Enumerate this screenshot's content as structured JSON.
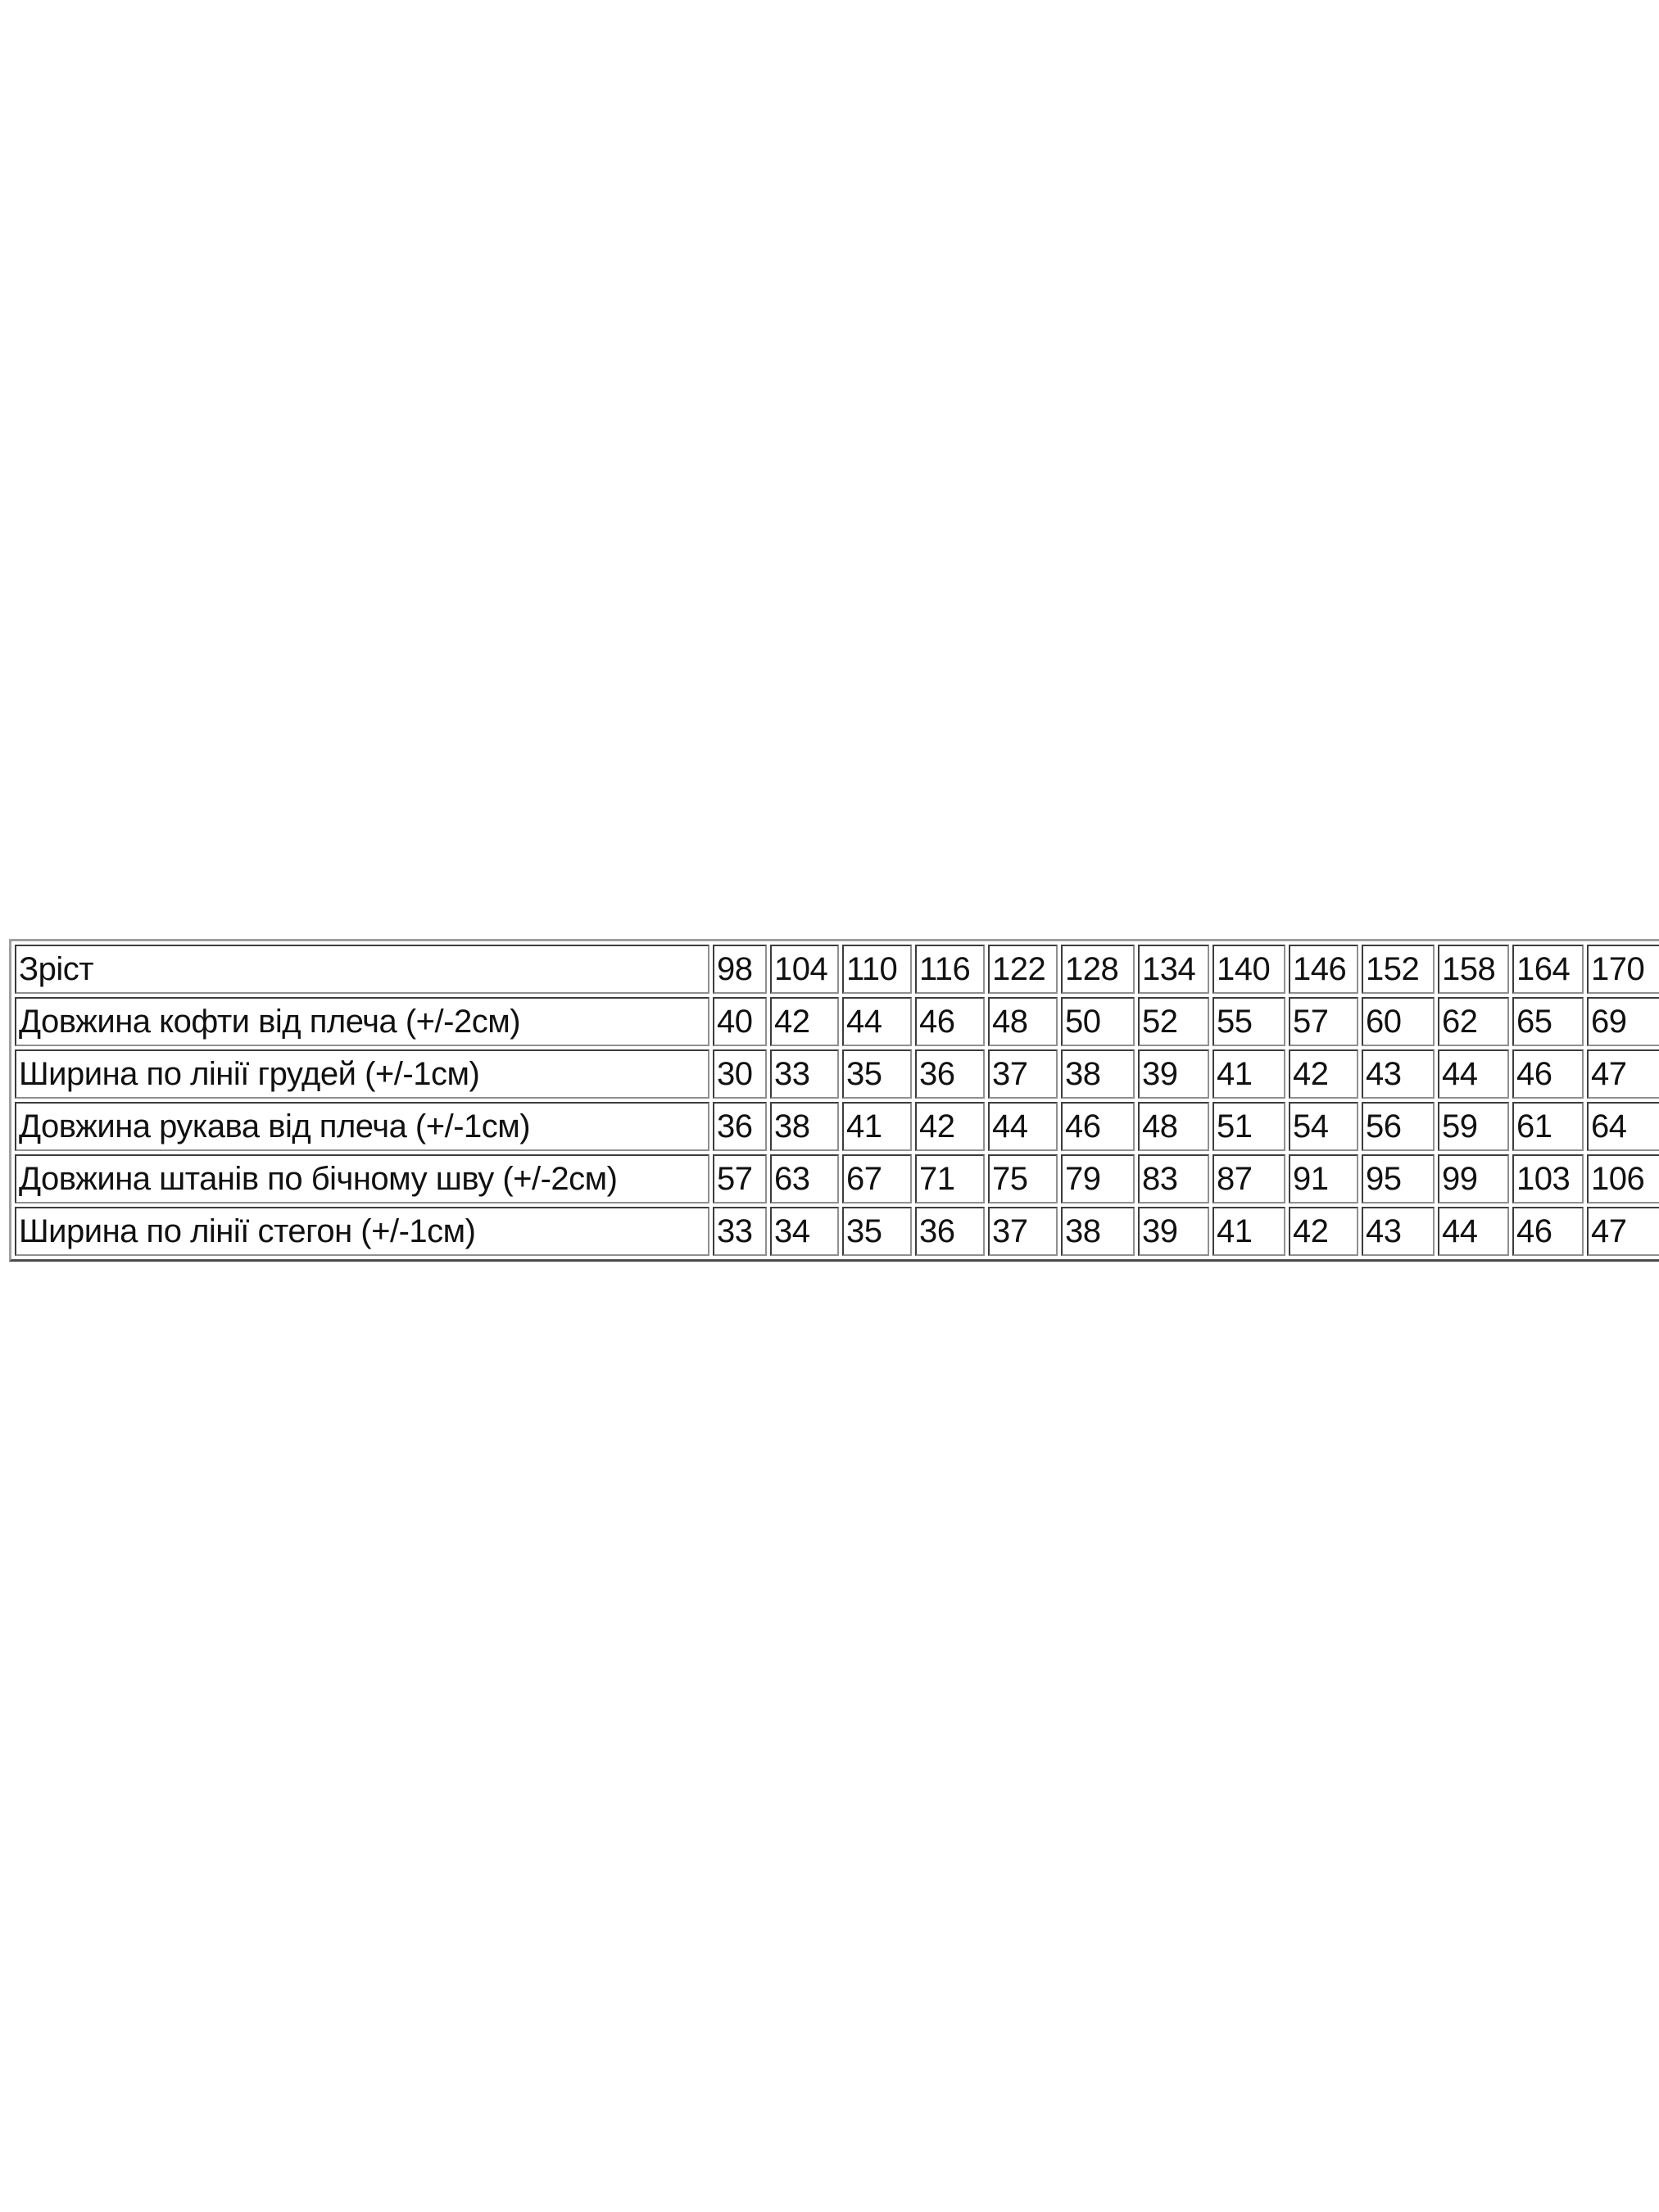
{
  "table": {
    "header": {
      "label": "Зріст",
      "values": [
        "98",
        "104",
        "110",
        "116",
        "122",
        "128",
        "134",
        "140",
        "146",
        "152",
        "158",
        "164",
        "170"
      ]
    },
    "rows": [
      {
        "label": "Довжина кофти від плеча (+/-2см)",
        "values": [
          "40",
          "42",
          "44",
          "46",
          "48",
          "50",
          "52",
          "55",
          "57",
          "60",
          "62",
          "65",
          "69"
        ]
      },
      {
        "label": "Ширина по лінії грудей (+/-1см)",
        "values": [
          "30",
          "33",
          "35",
          "36",
          "37",
          "38",
          "39",
          "41",
          "42",
          "43",
          "44",
          "46",
          "47"
        ]
      },
      {
        "label": "Довжина рукава від плеча (+/-1см)",
        "values": [
          "36",
          "38",
          "41",
          "42",
          "44",
          "46",
          "48",
          "51",
          "54",
          "56",
          "59",
          "61",
          "64"
        ]
      },
      {
        "label": "Довжина штанів по бічному шву (+/-2см)",
        "values": [
          "57",
          "63",
          "67",
          "71",
          "75",
          "79",
          "83",
          "87",
          "91",
          "95",
          "99",
          "103",
          "106"
        ]
      },
      {
        "label": "Ширина по лінії стегон (+/-1см)",
        "values": [
          "33",
          "34",
          "35",
          "36",
          "37",
          "38",
          "39",
          "41",
          "42",
          "43",
          "44",
          "46",
          "47"
        ]
      }
    ]
  }
}
